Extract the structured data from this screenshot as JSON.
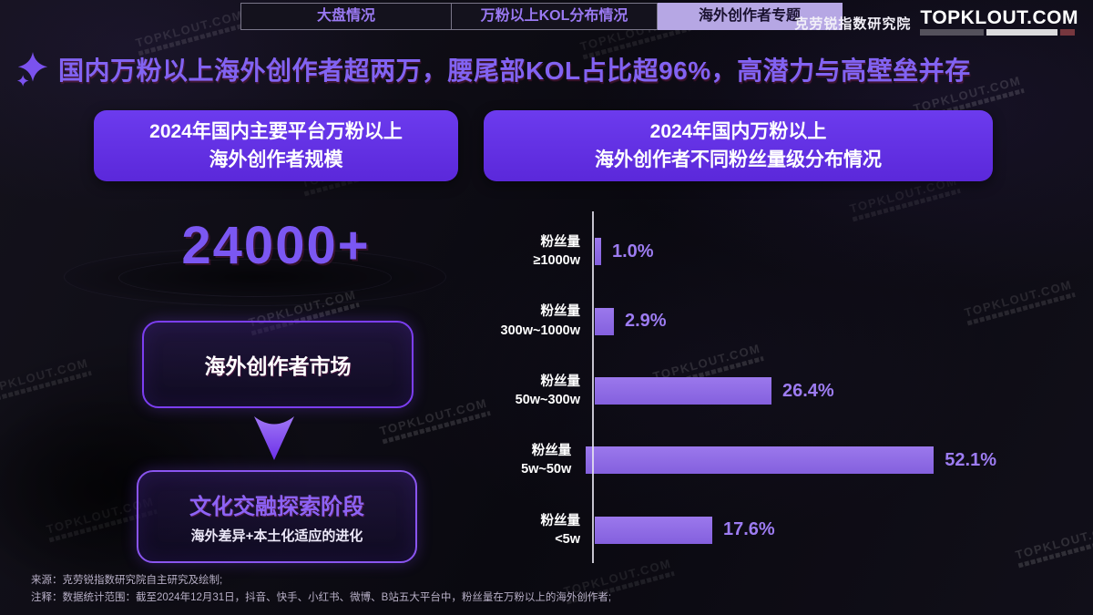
{
  "colors": {
    "accent_purple": "#6433e4",
    "panel_header_purple": "#6232e2",
    "bar_purple": "#8f6ce6",
    "value_label_purple": "#9d7cf2",
    "headline_purple": "#8263f2",
    "active_tab_bg": "#b6a7e4"
  },
  "tabs": [
    {
      "label": "大盘情况",
      "active": false
    },
    {
      "label": "万粉以上KOL分布情况",
      "active": false
    },
    {
      "label": "海外创作者专题",
      "active": true
    }
  ],
  "logo": {
    "org": "克劳锐指数研究院",
    "site": "TOPKLOUT.COM"
  },
  "headline": "国内万粉以上海外创作者超两万，腰尾部KOL占比超96%，高潜力与高壁垒并存",
  "left_panel": {
    "header_line1": "2024年国内主要平台万粉以上",
    "header_line2": "海外创作者规模",
    "big_number": "24000+",
    "market_label": "海外创作者市场",
    "stage_title": "文化交融探索阶段",
    "stage_subtitle": "海外差异+本土化适应的进化"
  },
  "right_panel": {
    "header_line1": "2024年国内万粉以上",
    "header_line2": "海外创作者不同粉丝量级分布情况"
  },
  "chart_data": {
    "type": "bar",
    "orientation": "horizontal",
    "title": "2024年国内万粉以上海外创作者不同粉丝量级分布情况",
    "category_prefix": "粉丝量",
    "categories": [
      "≥1000w",
      "300w~1000w",
      "50w~300w",
      "5w~50w",
      "<5w"
    ],
    "values": [
      1.0,
      2.9,
      26.4,
      52.1,
      17.6
    ],
    "value_labels": [
      "1.0%",
      "2.9%",
      "26.4%",
      "52.1%",
      "17.6%"
    ],
    "unit": "%",
    "xlabel": "",
    "ylabel": "",
    "xlim": [
      0,
      55
    ],
    "grid": false,
    "legend": false,
    "bar_color": "#8f6ce6"
  },
  "footer": {
    "source": "来源：克劳锐指数研究院自主研究及绘制;",
    "note": "注释：数据统计范围：截至2024年12月31日，抖音、快手、小红书、微博、B站五大平台中，粉丝量在万粉以上的海外创作者;"
  },
  "watermark": {
    "text": "TOPKLOUT.COM"
  }
}
